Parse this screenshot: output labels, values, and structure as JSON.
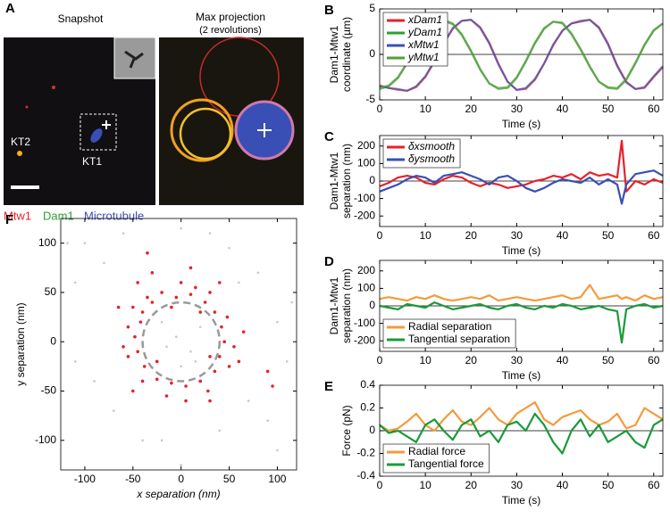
{
  "panel_a": {
    "panel": "A",
    "left_title": "Snapshot",
    "right_title": "Max projection",
    "right_subtitle": "(2 revolutions)",
    "labels": [
      "KT2",
      "KT1"
    ],
    "channels": [
      {
        "name": "Mtw1",
        "color": "#e8202a"
      },
      {
        "name": "Dam1",
        "color": "#2ca02c"
      },
      {
        "name": "Microtubule",
        "color": "#3a4fb5"
      }
    ]
  },
  "chart_data": [
    {
      "type": "line",
      "panel": "B",
      "ylabel": [
        "Dam1-Mtw1",
        "coordinate (µm)"
      ],
      "xlabel": "Time (s)",
      "x": [
        0,
        2,
        4,
        6,
        8,
        10,
        12,
        14,
        16,
        18,
        20,
        22,
        24,
        26,
        28,
        30,
        32,
        34,
        36,
        38,
        40,
        42,
        44,
        46,
        48,
        50,
        52,
        54,
        56,
        58,
        60,
        62
      ],
      "xlim": [
        0,
        62
      ],
      "xticks": [
        0,
        10,
        20,
        30,
        40,
        50,
        60
      ],
      "ylim": [
        -5,
        5
      ],
      "yticks": [
        -5,
        0,
        5
      ],
      "hline": 0,
      "legend": "upper left",
      "series": [
        {
          "name": "xDam1",
          "color": "#e8202a",
          "values": [
            -3.4,
            -3.7,
            -3.9,
            -4.0,
            -3.6,
            -2.5,
            -0.8,
            1.2,
            2.8,
            3.7,
            3.8,
            3.0,
            1.3,
            -1.0,
            -3.0,
            -3.9,
            -3.8,
            -2.8,
            -1.0,
            1.0,
            2.6,
            3.4,
            3.6,
            3.8,
            3.0,
            1.2,
            -1.2,
            -3.0,
            -3.8,
            -3.7,
            -2.5,
            -1.4
          ]
        },
        {
          "name": "yDam1",
          "color": "#2ca02c",
          "values": [
            -3.8,
            -3.5,
            -2.6,
            -1.0,
            0.8,
            2.4,
            3.5,
            3.8,
            3.4,
            2.2,
            0.4,
            -1.6,
            -3.2,
            -3.8,
            -3.7,
            -2.6,
            -0.8,
            1.2,
            2.8,
            3.6,
            3.5,
            2.3,
            0.6,
            -1.3,
            -3.0,
            -3.7,
            -3.8,
            -2.8,
            -1.0,
            1.0,
            2.6,
            3.4
          ]
        },
        {
          "name": "xMtw1",
          "color": "#3a4fb5",
          "values": [
            -3.5,
            -3.7,
            -3.8,
            -4.0,
            -3.5,
            -2.4,
            -0.7,
            1.2,
            2.9,
            3.7,
            3.8,
            2.9,
            1.2,
            -1.1,
            -3.0,
            -3.9,
            -3.7,
            -2.7,
            -1.0,
            1.1,
            2.6,
            3.4,
            3.7,
            3.8,
            2.9,
            1.1,
            -1.3,
            -3.1,
            -3.8,
            -3.6,
            -2.4,
            -1.3
          ]
        },
        {
          "name": "yMtw1",
          "color": "#5a9a3a",
          "values": [
            -3.7,
            -3.4,
            -2.5,
            -0.9,
            0.9,
            2.5,
            3.5,
            3.7,
            3.3,
            2.1,
            0.3,
            -1.7,
            -3.2,
            -3.7,
            -3.6,
            -2.5,
            -0.7,
            1.3,
            2.9,
            3.6,
            3.4,
            2.2,
            0.5,
            -1.4,
            -3.0,
            -3.6,
            -3.7,
            -2.7,
            -0.9,
            1.1,
            2.7,
            3.4
          ]
        }
      ]
    },
    {
      "type": "line",
      "panel": "C",
      "ylabel": [
        "Dam1-Mtw1",
        "separation (nm)"
      ],
      "xlabel": "Time (s)",
      "x": [
        0,
        2,
        4,
        6,
        8,
        10,
        12,
        14,
        16,
        18,
        20,
        22,
        24,
        26,
        28,
        30,
        32,
        34,
        36,
        38,
        40,
        42,
        44,
        46,
        48,
        50,
        52,
        53,
        54,
        56,
        58,
        60,
        62
      ],
      "xlim": [
        0,
        62
      ],
      "xticks": [
        0,
        10,
        20,
        30,
        40,
        50,
        60
      ],
      "ylim": [
        -260,
        260
      ],
      "yticks": [
        -200,
        -100,
        0,
        100,
        200
      ],
      "hline": 0,
      "legend": "upper left",
      "series": [
        {
          "name": "δxsmooth",
          "color": "#e8202a",
          "values": [
            -30,
            -10,
            20,
            30,
            20,
            -10,
            -20,
            10,
            30,
            20,
            -10,
            -30,
            -10,
            -20,
            -40,
            -30,
            -20,
            0,
            10,
            30,
            20,
            40,
            10,
            50,
            30,
            40,
            20,
            230,
            -60,
            0,
            -20,
            10,
            -10
          ]
        },
        {
          "name": "δysmooth",
          "color": "#3a4fb5",
          "values": [
            -60,
            -40,
            -20,
            10,
            30,
            20,
            -10,
            30,
            40,
            50,
            30,
            10,
            -20,
            20,
            30,
            0,
            -40,
            -60,
            -40,
            -10,
            10,
            0,
            -10,
            20,
            -20,
            10,
            -20,
            -130,
            -20,
            40,
            50,
            60,
            30
          ]
        }
      ]
    },
    {
      "type": "line",
      "panel": "D",
      "ylabel": [
        "Dam1-Mtw1",
        "separation (nm)"
      ],
      "xlabel": "Time (s)",
      "x": [
        0,
        2,
        4,
        6,
        8,
        10,
        12,
        14,
        16,
        18,
        20,
        22,
        24,
        26,
        28,
        30,
        32,
        34,
        36,
        38,
        40,
        42,
        44,
        46,
        48,
        50,
        52,
        53,
        54,
        56,
        58,
        60,
        62
      ],
      "xlim": [
        0,
        62
      ],
      "xticks": [
        0,
        10,
        20,
        30,
        40,
        50,
        60
      ],
      "ylim": [
        -260,
        260
      ],
      "yticks": [
        -200,
        -100,
        0,
        100,
        200
      ],
      "hline": 0,
      "legend": "lower left",
      "series": [
        {
          "name": "Radial separation",
          "color": "#f59a3a",
          "values": [
            40,
            50,
            40,
            30,
            50,
            40,
            60,
            40,
            30,
            40,
            50,
            40,
            60,
            30,
            40,
            50,
            40,
            30,
            40,
            50,
            60,
            40,
            50,
            120,
            40,
            50,
            60,
            40,
            50,
            30,
            60,
            40,
            50
          ]
        },
        {
          "name": "Tangential separation",
          "color": "#1a9a3a",
          "values": [
            0,
            -10,
            -20,
            10,
            0,
            -10,
            20,
            0,
            -20,
            -10,
            0,
            10,
            -10,
            -20,
            0,
            10,
            -10,
            -20,
            0,
            -10,
            10,
            0,
            -20,
            -10,
            0,
            -20,
            -30,
            -210,
            -20,
            0,
            10,
            -10,
            0
          ]
        }
      ]
    },
    {
      "type": "line",
      "panel": "E",
      "ylabel": [
        "Force (pN)"
      ],
      "xlabel": "Time (s)",
      "x": [
        0,
        2,
        4,
        6,
        8,
        10,
        12,
        14,
        16,
        18,
        20,
        22,
        24,
        26,
        28,
        30,
        32,
        34,
        36,
        38,
        40,
        42,
        44,
        46,
        48,
        50,
        52,
        54,
        56,
        58,
        60,
        62
      ],
      "xlim": [
        0,
        62
      ],
      "xticks": [
        0,
        10,
        20,
        30,
        40,
        50,
        60
      ],
      "ylim": [
        -0.4,
        0.4
      ],
      "yticks": [
        -0.4,
        -0.2,
        0,
        0.2,
        0.4
      ],
      "hline": 0,
      "legend": "lower left",
      "series": [
        {
          "name": "Radial force",
          "color": "#f59a3a",
          "values": [
            0.05,
            0.0,
            0.02,
            0.08,
            0.15,
            0.05,
            0.0,
            0.1,
            0.18,
            0.08,
            0.05,
            0.12,
            0.2,
            0.1,
            0.05,
            0.15,
            0.2,
            0.25,
            0.1,
            0.05,
            0.12,
            0.15,
            0.18,
            0.1,
            0.05,
            0.08,
            0.15,
            0.02,
            0.05,
            0.2,
            0.15,
            0.1
          ]
        },
        {
          "name": "Tangential force",
          "color": "#1a9a3a",
          "values": [
            0.05,
            -0.02,
            0.0,
            -0.05,
            -0.1,
            0.05,
            0.1,
            0.0,
            -0.08,
            0.05,
            0.1,
            -0.05,
            0.0,
            -0.1,
            0.05,
            0.08,
            0.0,
            0.15,
            0.05,
            -0.1,
            -0.2,
            0.0,
            0.1,
            -0.05,
            0.05,
            -0.1,
            -0.05,
            0.0,
            -0.1,
            -0.15,
            0.05,
            0.1
          ]
        }
      ]
    },
    {
      "type": "scatter",
      "panel": "F",
      "xlabel": "x separation (nm)",
      "ylabel": [
        "y separation (nm)"
      ],
      "xlim": [
        -125,
        120
      ],
      "xticks": [
        -100,
        -50,
        0,
        50,
        100
      ],
      "ylim": [
        -130,
        125
      ],
      "yticks": [
        -100,
        -50,
        0,
        50,
        100
      ],
      "circle_radius": 40,
      "series": [
        {
          "color": "#c8c8c8",
          "x": [
            -100,
            -80,
            -60,
            0,
            50,
            80,
            100,
            110,
            90,
            40,
            -20,
            -70,
            -110,
            -110,
            -5,
            10,
            -15,
            20,
            0,
            -20,
            15,
            60,
            -90,
            30,
            -40,
            70,
            115,
            -118,
            0,
            100
          ],
          "y": [
            100,
            80,
            110,
            115,
            95,
            70,
            20,
            -20,
            -80,
            -90,
            -100,
            -70,
            -20,
            60,
            5,
            -10,
            -5,
            15,
            -25,
            20,
            -20,
            60,
            -40,
            110,
            -100,
            -60,
            40,
            100,
            -125,
            -110
          ]
        },
        {
          "color": "#e8202a",
          "x": [
            -40,
            -35,
            -20,
            -5,
            10,
            25,
            35,
            42,
            45,
            40,
            35,
            20,
            5,
            -10,
            -25,
            -38,
            -45,
            -48,
            -42,
            -30,
            0,
            15,
            30,
            48,
            55,
            50,
            28,
            -15,
            -40,
            -55,
            -55,
            -50,
            -45,
            -10,
            20,
            30,
            -25,
            60,
            65,
            -60,
            -30,
            10,
            40,
            -65,
            90,
            95,
            -35,
            5,
            30,
            -50
          ],
          "y": [
            30,
            45,
            50,
            45,
            48,
            40,
            30,
            15,
            0,
            -15,
            -30,
            -40,
            -45,
            -42,
            -38,
            -25,
            -10,
            5,
            20,
            40,
            60,
            55,
            50,
            25,
            -5,
            -25,
            -50,
            -55,
            -40,
            -15,
            15,
            35,
            60,
            35,
            30,
            -15,
            -20,
            -20,
            10,
            -5,
            70,
            75,
            60,
            35,
            -30,
            -45,
            90,
            -60,
            -60,
            -50
          ]
        }
      ]
    }
  ]
}
